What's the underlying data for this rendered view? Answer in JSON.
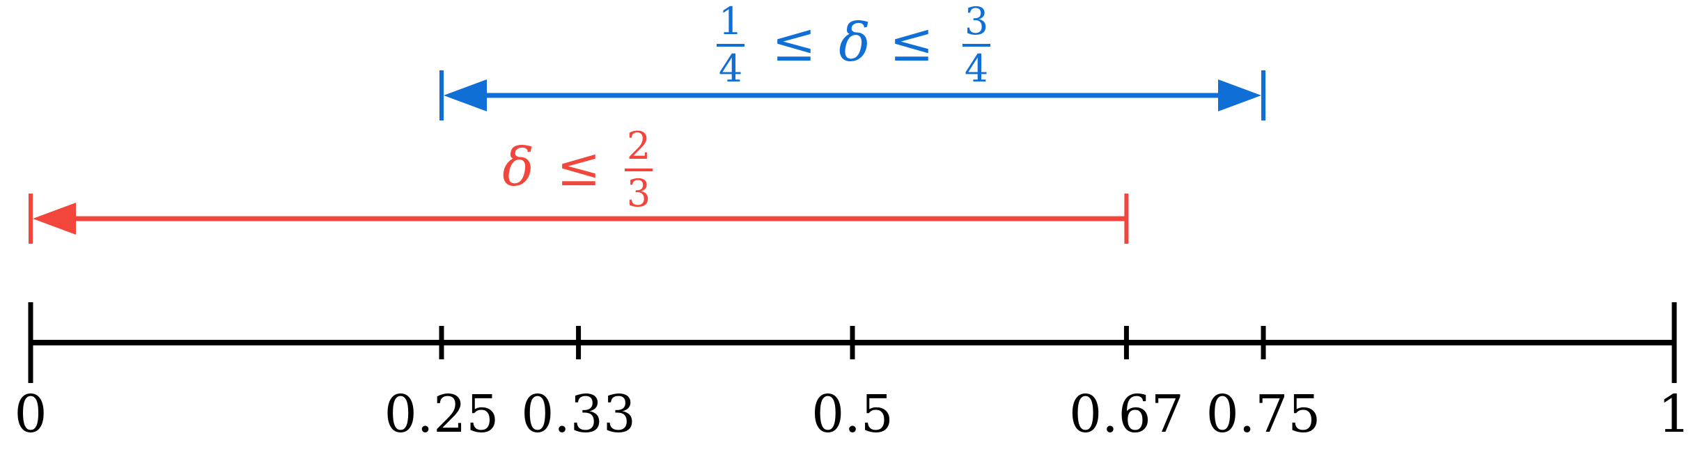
{
  "number_line": {
    "min": 0,
    "max": 1,
    "color": "#000000",
    "ticks": [
      {
        "value": 0,
        "label": "0",
        "major": true
      },
      {
        "value": 0.25,
        "label": "0.25",
        "major": false
      },
      {
        "value": 0.3333,
        "label": "0.33",
        "major": false
      },
      {
        "value": 0.5,
        "label": "0.5",
        "major": false
      },
      {
        "value": 0.6667,
        "label": "0.67",
        "major": false
      },
      {
        "value": 0.75,
        "label": "0.75",
        "major": false
      },
      {
        "value": 1,
        "label": "1",
        "major": true
      }
    ]
  },
  "intervals": [
    {
      "id": "quarter-to-three-quarters",
      "color": "#0f6fd6",
      "from": 0.25,
      "to": 0.75,
      "arrow_left": true,
      "arrow_right": true,
      "level": 2,
      "label": {
        "left_num": "1",
        "left_den": "4",
        "rel1": "≤",
        "var": "δ",
        "rel2": "≤",
        "right_num": "3",
        "right_den": "4"
      }
    },
    {
      "id": "up-to-two-thirds",
      "color": "#f2463c",
      "from": 0,
      "to": 0.6667,
      "arrow_left": true,
      "arrow_right": false,
      "level": 1,
      "label": {
        "var": "δ",
        "rel1": "≤",
        "right_num": "2",
        "right_den": "3"
      }
    }
  ]
}
